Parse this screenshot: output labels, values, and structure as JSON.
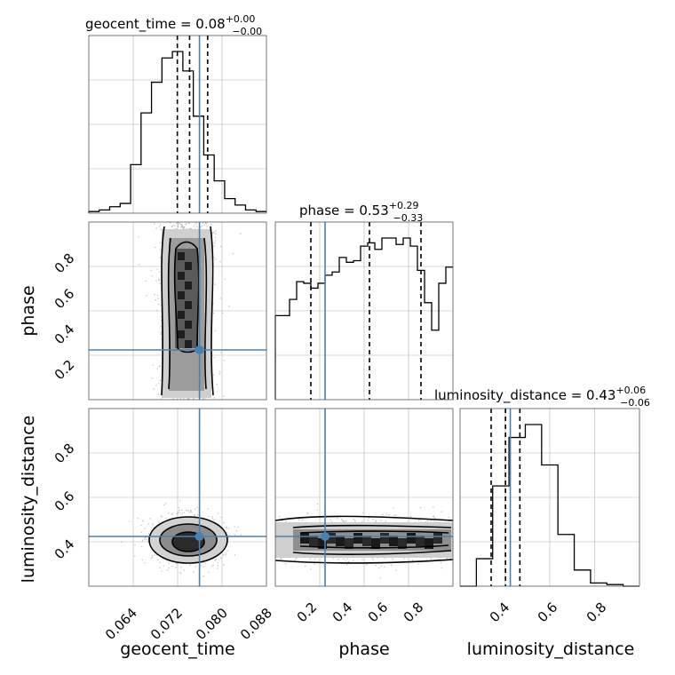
{
  "figure": {
    "type": "corner plot",
    "colors": {
      "truth": "#4682b4",
      "histogram": "#000000",
      "grid": "#b0b0b0",
      "scatter": "#9a9a9a"
    }
  },
  "chart_data": [
    {
      "type": "bar",
      "panel": "geocent_time 1D marginal",
      "title": "geocent_time = 0.08",
      "title_sup": "+0.00",
      "title_sub": "−0.00",
      "xlim": [
        0.058,
        0.0885
      ],
      "x_ticks": [
        "0.064",
        "0.072",
        "0.080",
        "0.088"
      ],
      "bin_values": [
        0.01,
        0.02,
        0.04,
        0.06,
        0.3,
        0.62,
        0.81,
        0.96,
        1.0,
        0.88,
        0.6,
        0.36,
        0.2,
        0.09,
        0.05,
        0.02,
        0.01
      ],
      "quantile_lines": [
        0.0732,
        0.0753,
        0.0784
      ],
      "truth": 0.077
    },
    {
      "type": "bar",
      "panel": "phase 1D marginal",
      "title": "phase = 0.53",
      "title_sup": "+0.29",
      "title_sub": "−0.33",
      "xlim": [
        0.0,
        1.0
      ],
      "x_ticks": [
        "0.2",
        "0.4",
        "0.6",
        "0.8"
      ],
      "bin_values": [
        0.52,
        0.52,
        0.62,
        0.73,
        0.72,
        0.69,
        0.72,
        0.77,
        0.79,
        0.88,
        0.85,
        0.86,
        0.95,
        0.97,
        0.93,
        1.0,
        1.0,
        0.96,
        1.0,
        0.95,
        0.8,
        0.6,
        0.43,
        0.72,
        0.82
      ],
      "quantile_lines": [
        0.2,
        0.53,
        0.82
      ],
      "truth": 0.28
    },
    {
      "type": "bar",
      "panel": "luminosity_distance 1D marginal",
      "title": "luminosity_distance = 0.43",
      "title_sup": "+0.06",
      "title_sub": "−0.06",
      "xlim": [
        0.24,
        0.99
      ],
      "x_ticks": [
        "0.4",
        "0.6",
        "0.8"
      ],
      "bin_values": [
        0.0,
        0.17,
        0.62,
        0.92,
        1.0,
        0.75,
        0.32,
        0.1,
        0.02,
        0.01,
        0.0
      ],
      "quantile_lines": [
        0.37,
        0.43,
        0.49
      ],
      "truth": 0.45
    },
    {
      "type": "heatmap",
      "panel": "phase vs geocent_time",
      "x": "geocent_time",
      "y": "phase",
      "xlim": [
        0.058,
        0.0885
      ],
      "ylim": [
        0.0,
        1.0
      ],
      "y_ticks": [
        "0.2",
        "0.4",
        "0.6",
        "0.8"
      ],
      "truth": [
        0.077,
        0.28
      ]
    },
    {
      "type": "heatmap",
      "panel": "luminosity_distance vs geocent_time",
      "x": "geocent_time",
      "y": "luminosity_distance",
      "xlim": [
        0.058,
        0.0885
      ],
      "ylim": [
        0.24,
        0.99
      ],
      "y_ticks": [
        "0.4",
        "0.6",
        "0.8"
      ],
      "truth": [
        0.077,
        0.45
      ]
    },
    {
      "type": "heatmap",
      "panel": "luminosity_distance vs phase",
      "x": "phase",
      "y": "luminosity_distance",
      "xlim": [
        0.0,
        1.0
      ],
      "ylim": [
        0.24,
        0.99
      ],
      "truth": [
        0.28,
        0.45
      ]
    }
  ],
  "labels": {
    "x0": "geocent_time",
    "x1": "phase",
    "x2": "luminosity_distance",
    "y1": "phase",
    "y2": "luminosity_distance"
  }
}
